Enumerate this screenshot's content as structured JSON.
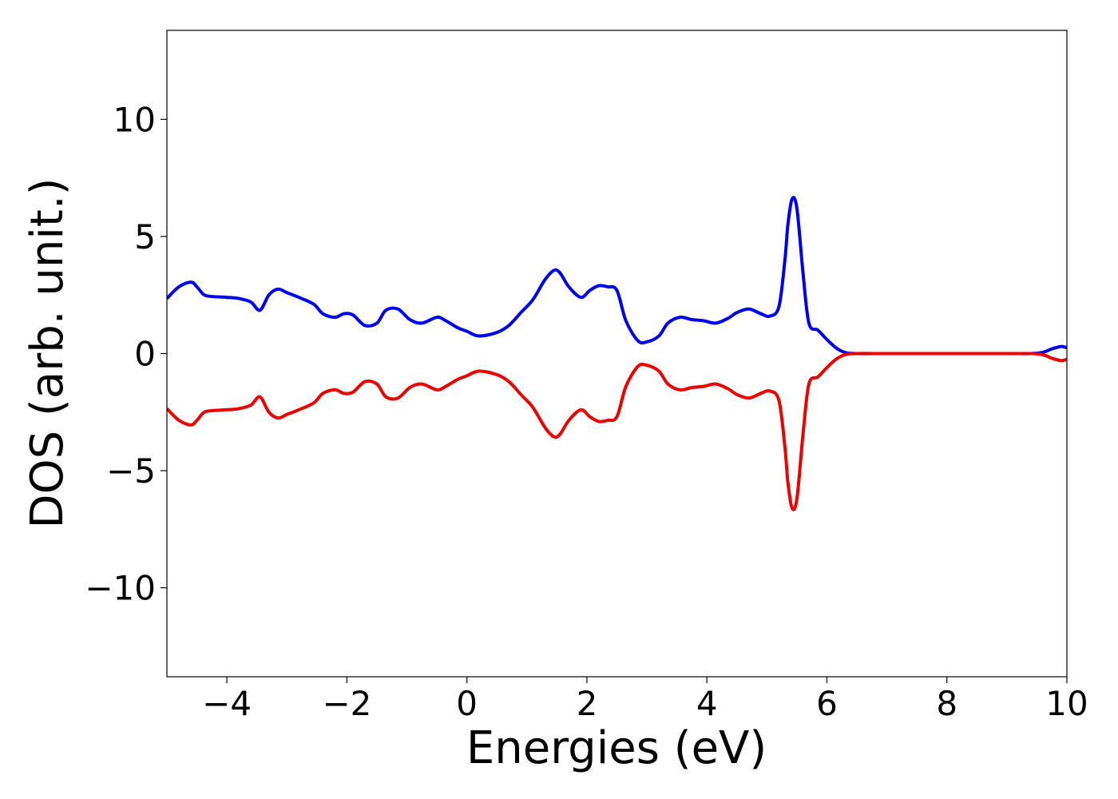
{
  "chart_data": {
    "type": "line",
    "title": "",
    "xlabel": "Energies (eV)",
    "ylabel": "DOS (arb. unit.)",
    "xlim": [
      -5,
      10
    ],
    "ylim": [
      -13.8,
      13.8
    ],
    "grid": false,
    "xticks": [
      -4,
      -2,
      0,
      2,
      4,
      6,
      8,
      10
    ],
    "xtick_labels": [
      "−4",
      "−2",
      "0",
      "2",
      "4",
      "6",
      "8",
      "10"
    ],
    "yticks": [
      -10,
      -5,
      0,
      5,
      10
    ],
    "ytick_labels": [
      "−10",
      "−5",
      "0",
      "5",
      "10"
    ],
    "x": [
      -5.0,
      -4.8,
      -4.6,
      -4.5,
      -4.4,
      -4.3,
      -4.0,
      -3.8,
      -3.6,
      -3.45,
      -3.3,
      -3.15,
      -3.0,
      -2.8,
      -2.55,
      -2.4,
      -2.2,
      -2.05,
      -1.9,
      -1.7,
      -1.5,
      -1.35,
      -1.15,
      -0.95,
      -0.75,
      -0.5,
      -0.35,
      -0.15,
      0.0,
      0.2,
      0.5,
      0.7,
      0.9,
      1.1,
      1.3,
      1.45,
      1.55,
      1.7,
      1.9,
      2.05,
      2.2,
      2.35,
      2.5,
      2.65,
      2.85,
      3.0,
      3.2,
      3.35,
      3.55,
      3.75,
      3.95,
      4.15,
      4.35,
      4.5,
      4.7,
      4.9,
      5.05,
      5.2,
      5.3,
      5.35,
      5.42,
      5.5,
      5.6,
      5.7,
      5.85,
      6.0,
      6.15,
      6.3,
      6.5,
      7.0,
      8.0,
      9.0,
      9.4,
      9.6,
      9.75,
      9.9,
      10.0
    ],
    "series": [
      {
        "color": "#0000ee",
        "values": [
          2.35,
          2.85,
          3.05,
          2.85,
          2.55,
          2.45,
          2.4,
          2.35,
          2.2,
          1.85,
          2.5,
          2.75,
          2.6,
          2.4,
          2.1,
          1.7,
          1.55,
          1.7,
          1.65,
          1.2,
          1.3,
          1.85,
          1.9,
          1.45,
          1.3,
          1.55,
          1.4,
          1.1,
          0.95,
          0.75,
          0.9,
          1.2,
          1.75,
          2.3,
          3.15,
          3.55,
          3.45,
          2.85,
          2.4,
          2.7,
          2.9,
          2.85,
          2.7,
          1.4,
          0.55,
          0.5,
          0.75,
          1.3,
          1.55,
          1.45,
          1.4,
          1.3,
          1.5,
          1.75,
          1.9,
          1.7,
          1.6,
          2.0,
          4.0,
          5.5,
          6.6,
          6.2,
          3.5,
          1.3,
          1.0,
          0.6,
          0.25,
          0.05,
          0.0,
          0.0,
          0.0,
          0.0,
          0.0,
          0.05,
          0.2,
          0.3,
          0.25
        ]
      },
      {
        "color": "#ee0000",
        "values": [
          -2.35,
          -2.85,
          -3.05,
          -2.85,
          -2.55,
          -2.45,
          -2.4,
          -2.35,
          -2.2,
          -1.85,
          -2.5,
          -2.75,
          -2.6,
          -2.4,
          -2.1,
          -1.7,
          -1.55,
          -1.7,
          -1.65,
          -1.2,
          -1.3,
          -1.85,
          -1.9,
          -1.45,
          -1.3,
          -1.55,
          -1.4,
          -1.1,
          -0.95,
          -0.75,
          -0.9,
          -1.2,
          -1.75,
          -2.3,
          -3.15,
          -3.55,
          -3.45,
          -2.85,
          -2.4,
          -2.7,
          -2.9,
          -2.85,
          -2.7,
          -1.4,
          -0.55,
          -0.5,
          -0.75,
          -1.3,
          -1.55,
          -1.45,
          -1.4,
          -1.3,
          -1.5,
          -1.75,
          -1.9,
          -1.7,
          -1.6,
          -2.0,
          -4.0,
          -5.5,
          -6.6,
          -6.2,
          -3.5,
          -1.3,
          -1.0,
          -0.6,
          -0.25,
          -0.05,
          0.0,
          0.0,
          0.0,
          0.0,
          0.0,
          -0.05,
          -0.2,
          -0.3,
          -0.25
        ]
      }
    ]
  }
}
